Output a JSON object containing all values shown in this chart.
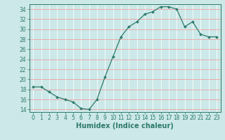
{
  "x": [
    0,
    1,
    2,
    3,
    4,
    5,
    6,
    7,
    8,
    9,
    10,
    11,
    12,
    13,
    14,
    15,
    16,
    17,
    18,
    19,
    20,
    21,
    22,
    23
  ],
  "y": [
    18.5,
    18.5,
    17.5,
    16.5,
    16.0,
    15.5,
    14.2,
    14.0,
    16.0,
    20.5,
    24.5,
    28.5,
    30.5,
    31.5,
    33.0,
    33.5,
    34.5,
    34.5,
    34.0,
    30.5,
    31.5,
    29.0,
    28.5,
    28.5
  ],
  "xlabel": "Humidex (Indice chaleur)",
  "xlim": [
    -0.5,
    23.5
  ],
  "ylim": [
    13.5,
    35.0
  ],
  "yticks": [
    14,
    16,
    18,
    20,
    22,
    24,
    26,
    28,
    30,
    32,
    34
  ],
  "xticks": [
    0,
    1,
    2,
    3,
    4,
    5,
    6,
    7,
    8,
    9,
    10,
    11,
    12,
    13,
    14,
    15,
    16,
    17,
    18,
    19,
    20,
    21,
    22,
    23
  ],
  "line_color": "#2d7a6b",
  "marker": "D",
  "marker_size": 2.0,
  "bg_color": "#cce8e8",
  "grid_v_color": "#ffffff",
  "grid_h_color": "#f0a0a0",
  "tick_fontsize": 5.5,
  "xlabel_fontsize": 7.0,
  "spine_color": "#2d7a6b"
}
